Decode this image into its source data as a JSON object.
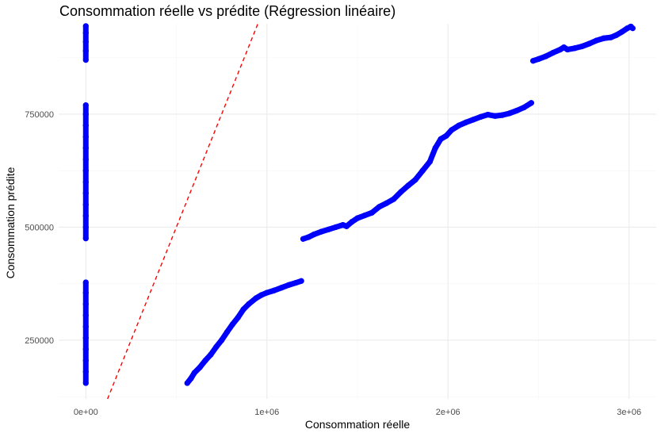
{
  "chart_data": {
    "type": "scatter",
    "title": "Consommation réelle vs prédite (Régression linéaire)",
    "xlabel": "Consommation réelle",
    "ylabel": "Consommation prédite",
    "xlim": [
      -150000,
      3150000
    ],
    "ylim": [
      120000,
      950000
    ],
    "x_ticks": [
      0,
      1000000,
      2000000,
      3000000
    ],
    "x_tick_labels": [
      "0e+00",
      "1e+06",
      "2e+06",
      "3e+06"
    ],
    "y_ticks": [
      250000,
      500000,
      750000
    ],
    "y_tick_labels": [
      "250000",
      "500000",
      "750000"
    ],
    "x_minor_ticks": [
      500000,
      1500000,
      2500000
    ],
    "y_minor_ticks": [
      125000,
      375000,
      625000,
      875000
    ],
    "grid": true,
    "point_color": "#0000ff",
    "reference_line": {
      "type": "identity",
      "color": "#ff0000",
      "style": "dashed",
      "slope": 1,
      "intercept": 0
    },
    "series": [
      {
        "points": [
          [
            0,
            155000
          ],
          [
            0,
            180000
          ],
          [
            0,
            205000
          ],
          [
            0,
            230000
          ],
          [
            0,
            255000
          ],
          [
            0,
            280000
          ],
          [
            0,
            305000
          ],
          [
            0,
            330000
          ],
          [
            0,
            355000
          ],
          [
            0,
            378000
          ],
          [
            0,
            475000
          ],
          [
            0,
            500000
          ],
          [
            0,
            525000
          ],
          [
            0,
            550000
          ],
          [
            0,
            575000
          ],
          [
            0,
            600000
          ],
          [
            0,
            625000
          ],
          [
            0,
            650000
          ],
          [
            0,
            675000
          ],
          [
            0,
            700000
          ],
          [
            0,
            725000
          ],
          [
            0,
            750000
          ],
          [
            0,
            770000
          ],
          [
            0,
            870000
          ],
          [
            0,
            890000
          ],
          [
            0,
            910000
          ],
          [
            0,
            930000
          ],
          [
            0,
            945000
          ],
          [
            560000,
            155000
          ],
          [
            580000,
            165000
          ],
          [
            600000,
            178000
          ],
          [
            630000,
            190000
          ],
          [
            660000,
            205000
          ],
          [
            690000,
            218000
          ],
          [
            720000,
            235000
          ],
          [
            750000,
            250000
          ],
          [
            780000,
            268000
          ],
          [
            810000,
            285000
          ],
          [
            840000,
            300000
          ],
          [
            870000,
            318000
          ],
          [
            900000,
            330000
          ],
          [
            940000,
            343000
          ],
          [
            970000,
            350000
          ],
          [
            1000000,
            355000
          ],
          [
            1040000,
            360000
          ],
          [
            1080000,
            366000
          ],
          [
            1120000,
            372000
          ],
          [
            1160000,
            377000
          ],
          [
            1190000,
            381000
          ],
          [
            1200000,
            474000
          ],
          [
            1230000,
            478000
          ],
          [
            1260000,
            484000
          ],
          [
            1300000,
            490000
          ],
          [
            1340000,
            495000
          ],
          [
            1380000,
            500000
          ],
          [
            1420000,
            505000
          ],
          [
            1440000,
            502000
          ],
          [
            1470000,
            512000
          ],
          [
            1500000,
            520000
          ],
          [
            1540000,
            526000
          ],
          [
            1580000,
            532000
          ],
          [
            1620000,
            545000
          ],
          [
            1660000,
            553000
          ],
          [
            1700000,
            562000
          ],
          [
            1740000,
            578000
          ],
          [
            1780000,
            592000
          ],
          [
            1820000,
            605000
          ],
          [
            1860000,
            625000
          ],
          [
            1900000,
            645000
          ],
          [
            1930000,
            675000
          ],
          [
            1960000,
            695000
          ],
          [
            1990000,
            702000
          ],
          [
            2020000,
            715000
          ],
          [
            2060000,
            725000
          ],
          [
            2100000,
            732000
          ],
          [
            2140000,
            738000
          ],
          [
            2180000,
            744000
          ],
          [
            2220000,
            749000
          ],
          [
            2260000,
            746000
          ],
          [
            2300000,
            748000
          ],
          [
            2340000,
            752000
          ],
          [
            2380000,
            758000
          ],
          [
            2420000,
            765000
          ],
          [
            2460000,
            775000
          ],
          [
            2470000,
            868000
          ],
          [
            2500000,
            872000
          ],
          [
            2540000,
            878000
          ],
          [
            2580000,
            886000
          ],
          [
            2620000,
            893000
          ],
          [
            2640000,
            898000
          ],
          [
            2660000,
            893000
          ],
          [
            2700000,
            896000
          ],
          [
            2740000,
            900000
          ],
          [
            2780000,
            906000
          ],
          [
            2820000,
            913000
          ],
          [
            2860000,
            918000
          ],
          [
            2900000,
            920000
          ],
          [
            2930000,
            925000
          ],
          [
            2960000,
            932000
          ],
          [
            2990000,
            940000
          ],
          [
            3010000,
            944000
          ],
          [
            3020000,
            940000
          ]
        ]
      }
    ]
  }
}
